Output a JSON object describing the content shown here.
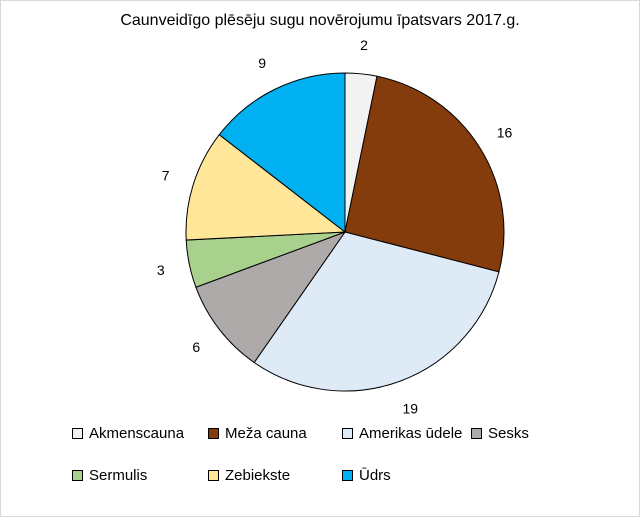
{
  "chart_data": {
    "type": "pie",
    "title": "Caunveidīgo plēsēju sugu novērojumu īpatsvars 2017.g.",
    "categories": [
      "Akmenscauna",
      "Meža cauna",
      "Amerikas ūdele",
      "Sesks",
      "Sermulis",
      "Zebiekste",
      "Ūdrs"
    ],
    "values": [
      2,
      16,
      19,
      6,
      3,
      7,
      9
    ],
    "colors": [
      "#f2f2f2",
      "#843c0c",
      "#deebf7",
      "#aeaaaa",
      "#a9d18e",
      "#ffe699",
      "#00b0f0"
    ],
    "start_angle_deg": 0,
    "direction": "clockwise",
    "legend_position": "bottom"
  }
}
